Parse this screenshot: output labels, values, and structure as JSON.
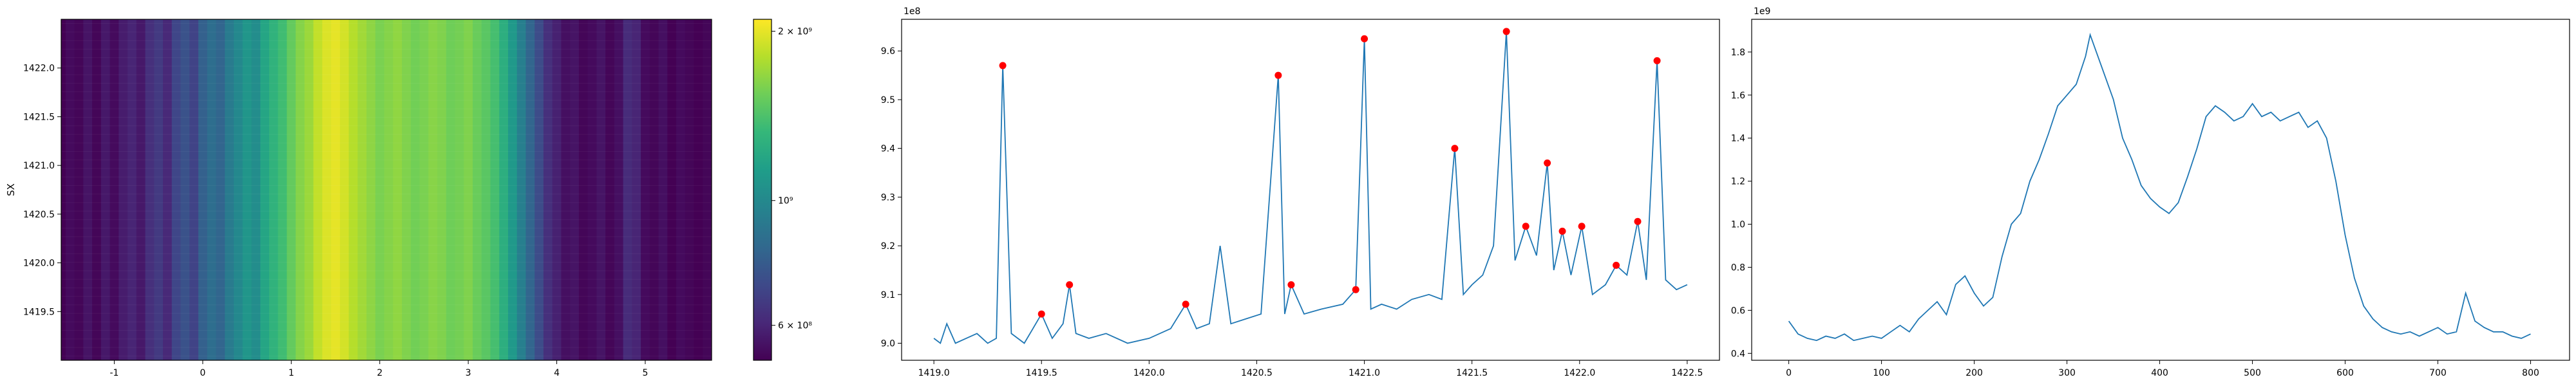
{
  "chart_data": [
    {
      "type": "heatmap",
      "title": "",
      "xlabel": "",
      "ylabel": "SX",
      "xlim": [
        -1.6,
        5.75
      ],
      "ylim": [
        1419.0,
        1422.5
      ],
      "x_ticks": [
        -1,
        0,
        1,
        2,
        3,
        4,
        5
      ],
      "y_ticks": [
        1419.5,
        1420.0,
        1420.5,
        1421.0,
        1421.5,
        1422.0
      ],
      "columns_x": [
        -1.6,
        -1.5,
        -1.4,
        -1.3,
        -1.2,
        -1.1,
        -1.0,
        -0.9,
        -0.8,
        -0.7,
        -0.6,
        -0.5,
        -0.4,
        -0.3,
        -0.2,
        -0.1,
        0.0,
        0.1,
        0.2,
        0.3,
        0.4,
        0.5,
        0.6,
        0.7,
        0.8,
        0.9,
        1.0,
        1.1,
        1.2,
        1.3,
        1.4,
        1.5,
        1.6,
        1.7,
        1.8,
        1.9,
        2.0,
        2.1,
        2.2,
        2.3,
        2.4,
        2.5,
        2.6,
        2.7,
        2.8,
        2.9,
        3.0,
        3.1,
        3.2,
        3.3,
        3.4,
        3.5,
        3.6,
        3.7,
        3.8,
        3.9,
        4.0,
        4.1,
        4.2,
        4.3,
        4.4,
        4.5,
        4.6,
        4.7,
        4.8,
        4.9,
        5.0,
        5.1,
        5.2,
        5.3,
        5.4,
        5.5,
        5.6,
        5.7
      ],
      "column_values": [
        520000000.0,
        540000000.0,
        530000000.0,
        560000000.0,
        530000000.0,
        570000000.0,
        540000000.0,
        580000000.0,
        600000000.0,
        570000000.0,
        630000000.0,
        660000000.0,
        610000000.0,
        700000000.0,
        740000000.0,
        690000000.0,
        800000000.0,
        860000000.0,
        820000000.0,
        930000000.0,
        1000000000.0,
        1080000000.0,
        1030000000.0,
        1180000000.0,
        1280000000.0,
        1360000000.0,
        1500000000.0,
        1620000000.0,
        1700000000.0,
        1850000000.0,
        1950000000.0,
        2000000000.0,
        1920000000.0,
        1800000000.0,
        1720000000.0,
        1650000000.0,
        1580000000.0,
        1620000000.0,
        1660000000.0,
        1600000000.0,
        1550000000.0,
        1580000000.0,
        1630000000.0,
        1600000000.0,
        1540000000.0,
        1560000000.0,
        1600000000.0,
        1520000000.0,
        1460000000.0,
        1380000000.0,
        1250000000.0,
        1100000000.0,
        950000000.0,
        820000000.0,
        720000000.0,
        630000000.0,
        590000000.0,
        550000000.0,
        560000000.0,
        530000000.0,
        540000000.0,
        560000000.0,
        530000000.0,
        550000000.0,
        620000000.0,
        600000000.0,
        540000000.0,
        530000000.0,
        550000000.0,
        520000000.0,
        540000000.0,
        530000000.0,
        520000000.0,
        530000000.0
      ],
      "colorbar": {
        "scale": "log",
        "range": [
          520000000.0,
          2100000000.0
        ],
        "ticks": [
          {
            "value": 600000000.0,
            "label": "6 × 10⁸"
          },
          {
            "value": 1000000000.0,
            "label": "10⁹"
          },
          {
            "value": 2000000000.0,
            "label": "2 × 10⁹"
          }
        ],
        "colors": [
          "#440154",
          "#482878",
          "#3e4989",
          "#31688e",
          "#26828e",
          "#1f9e89",
          "#35b779",
          "#6ece58",
          "#b5de2b",
          "#fde725"
        ]
      }
    },
    {
      "type": "line",
      "title": "",
      "xlabel": "",
      "ylabel": "",
      "offset_label": "1e8",
      "xlim": [
        1418.85,
        1422.65
      ],
      "ylim": [
        8.965,
        9.665
      ],
      "x_ticks": [
        1419.0,
        1419.5,
        1420.0,
        1420.5,
        1421.0,
        1421.5,
        1422.0,
        1422.5
      ],
      "y_ticks": [
        9.0,
        9.1,
        9.2,
        9.3,
        9.4,
        9.5,
        9.6
      ],
      "line_color": "#1f77b4",
      "marker_color": "#ff0000",
      "x": [
        1419.0,
        1419.03,
        1419.06,
        1419.1,
        1419.15,
        1419.2,
        1419.25,
        1419.29,
        1419.32,
        1419.36,
        1419.42,
        1419.46,
        1419.5,
        1419.55,
        1419.6,
        1419.63,
        1419.66,
        1419.72,
        1419.8,
        1419.9,
        1420.0,
        1420.1,
        1420.17,
        1420.22,
        1420.28,
        1420.33,
        1420.38,
        1420.45,
        1420.52,
        1420.6,
        1420.63,
        1420.66,
        1420.72,
        1420.8,
        1420.9,
        1420.96,
        1421.0,
        1421.03,
        1421.08,
        1421.15,
        1421.22,
        1421.3,
        1421.36,
        1421.42,
        1421.46,
        1421.5,
        1421.55,
        1421.6,
        1421.66,
        1421.7,
        1421.75,
        1421.8,
        1421.85,
        1421.88,
        1421.92,
        1421.96,
        1422.01,
        1422.06,
        1422.12,
        1422.17,
        1422.22,
        1422.27,
        1422.31,
        1422.36,
        1422.4,
        1422.45,
        1422.5
      ],
      "y": [
        9.01,
        9.0,
        9.04,
        9.0,
        9.01,
        9.02,
        9.0,
        9.01,
        9.57,
        9.02,
        9.0,
        9.03,
        9.06,
        9.01,
        9.04,
        9.12,
        9.02,
        9.01,
        9.02,
        9.0,
        9.01,
        9.03,
        9.08,
        9.03,
        9.04,
        9.2,
        9.04,
        9.05,
        9.06,
        9.55,
        9.06,
        9.12,
        9.06,
        9.07,
        9.08,
        9.11,
        9.625,
        9.07,
        9.08,
        9.07,
        9.09,
        9.1,
        9.09,
        9.4,
        9.1,
        9.12,
        9.14,
        9.2,
        9.64,
        9.17,
        9.24,
        9.18,
        9.37,
        9.15,
        9.23,
        9.14,
        9.24,
        9.1,
        9.12,
        9.16,
        9.14,
        9.25,
        9.13,
        9.58,
        9.13,
        9.11,
        9.12
      ],
      "peaks_x": [
        1419.32,
        1419.5,
        1419.63,
        1420.17,
        1420.6,
        1420.66,
        1420.96,
        1421.0,
        1421.42,
        1421.66,
        1421.75,
        1421.85,
        1421.92,
        1422.01,
        1422.17,
        1422.27,
        1422.36
      ],
      "peaks_y": [
        9.57,
        9.06,
        9.12,
        9.08,
        9.55,
        9.12,
        9.11,
        9.625,
        9.4,
        9.64,
        9.24,
        9.37,
        9.23,
        9.24,
        9.16,
        9.25,
        9.58
      ]
    },
    {
      "type": "line",
      "title": "",
      "xlabel": "",
      "ylabel": "",
      "offset_label": "1e9",
      "xlim": [
        -40,
        842
      ],
      "ylim": [
        0.368,
        1.952
      ],
      "x_ticks": [
        0,
        100,
        200,
        300,
        400,
        500,
        600,
        700,
        800
      ],
      "y_ticks": [
        0.4,
        0.6,
        0.8,
        1.0,
        1.2,
        1.4,
        1.6,
        1.8
      ],
      "line_color": "#1f77b4",
      "x": [
        0,
        10,
        20,
        30,
        40,
        50,
        60,
        70,
        80,
        90,
        100,
        110,
        120,
        130,
        140,
        150,
        160,
        170,
        180,
        190,
        200,
        210,
        220,
        230,
        240,
        250,
        260,
        270,
        280,
        290,
        300,
        310,
        320,
        325,
        330,
        340,
        350,
        360,
        370,
        380,
        390,
        400,
        410,
        420,
        430,
        440,
        450,
        460,
        470,
        480,
        490,
        500,
        510,
        520,
        530,
        540,
        550,
        560,
        570,
        580,
        590,
        600,
        610,
        620,
        630,
        640,
        650,
        660,
        670,
        680,
        690,
        700,
        710,
        720,
        730,
        740,
        750,
        760,
        770,
        780,
        790,
        800
      ],
      "y": [
        0.55,
        0.49,
        0.47,
        0.46,
        0.48,
        0.47,
        0.49,
        0.46,
        0.47,
        0.48,
        0.47,
        0.5,
        0.53,
        0.5,
        0.56,
        0.6,
        0.64,
        0.58,
        0.72,
        0.76,
        0.68,
        0.62,
        0.66,
        0.85,
        1.0,
        1.05,
        1.2,
        1.3,
        1.42,
        1.55,
        1.6,
        1.65,
        1.78,
        1.88,
        1.82,
        1.7,
        1.58,
        1.4,
        1.3,
        1.18,
        1.12,
        1.08,
        1.05,
        1.1,
        1.22,
        1.35,
        1.5,
        1.55,
        1.52,
        1.48,
        1.5,
        1.56,
        1.5,
        1.52,
        1.48,
        1.5,
        1.52,
        1.45,
        1.48,
        1.4,
        1.2,
        0.95,
        0.75,
        0.62,
        0.56,
        0.52,
        0.5,
        0.49,
        0.5,
        0.48,
        0.5,
        0.52,
        0.49,
        0.5,
        0.68,
        0.55,
        0.52,
        0.5,
        0.5,
        0.48,
        0.47,
        0.49
      ]
    }
  ]
}
